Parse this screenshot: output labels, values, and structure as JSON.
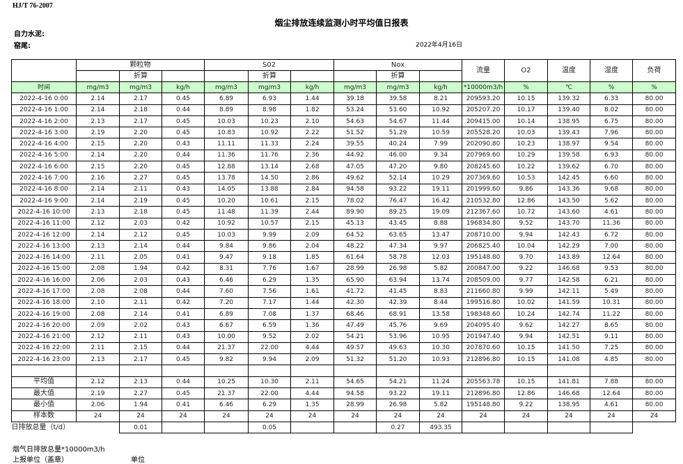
{
  "standard": "HJ/T  76-2007",
  "title": "烟尘排放连续监测小时平均值日报表",
  "company_label": "自力水泥:",
  "kiln_label": "窑尾:",
  "report_date": "2022年4月16日",
  "header": {
    "particulate": "颗粒物",
    "so2": "S02",
    "nox": "Nox",
    "converted": "折算",
    "flow": "流量",
    "o2": "O2",
    "temperature": "温度",
    "humidity": "湿度",
    "load": "负荷"
  },
  "units": [
    "时间",
    "mg/m3",
    "mg/m3",
    "kg/h",
    "mg/m3",
    "mg/m3",
    "kg/h",
    "mg/m3",
    "mg/m3",
    "kg/h",
    "*10000m3/h",
    "%",
    "℃",
    "%",
    "%"
  ],
  "rows": [
    [
      "2022-4-16 0:00",
      "2.14",
      "2.17",
      "0.45",
      "6.89",
      "6.93",
      "1.44",
      "39.18",
      "39.58",
      "8.21",
      "209593.20",
      "10.15",
      "139.32",
      "6.33",
      "80.00"
    ],
    [
      "2022-4-16 1:00",
      "2.14",
      "2.18",
      "0.44",
      "8.89",
      "8.98",
      "1.82",
      "53.24",
      "53.60",
      "10.92",
      "205207.20",
      "10.17",
      "139.40",
      "8.02",
      "80.00"
    ],
    [
      "2022-4-16 2:00",
      "2.13",
      "2.17",
      "0.45",
      "10.03",
      "10.23",
      "2.10",
      "54.63",
      "54.67",
      "11.44",
      "209415.00",
      "10.14",
      "138.95",
      "6.75",
      "80.00"
    ],
    [
      "2022-4-16 3:00",
      "2.19",
      "2.20",
      "0.45",
      "10.83",
      "10.92",
      "2.22",
      "51.52",
      "51.29",
      "10.59",
      "205528.20",
      "10.03",
      "139.43",
      "7.96",
      "80.00"
    ],
    [
      "2022-4-16 4:00",
      "2.15",
      "2.20",
      "0.43",
      "11.11",
      "11.33",
      "2.24",
      "39.55",
      "40.24",
      "7.99",
      "202090.80",
      "10.23",
      "138.97",
      "9.54",
      "80.00"
    ],
    [
      "2022-4-16 5:00",
      "2.14",
      "2.20",
      "0.44",
      "11.36",
      "11.76",
      "2.36",
      "44.92",
      "46.00",
      "9.34",
      "207969.60",
      "10.29",
      "139.58",
      "6.93",
      "80.00"
    ],
    [
      "2022-4-16 6:00",
      "2.15",
      "2.20",
      "0.45",
      "12.88",
      "13.14",
      "2.68",
      "47.05",
      "47.20",
      "9.80",
      "208245.60",
      "10.22",
      "139.62",
      "6.70",
      "80.00"
    ],
    [
      "2022-4-16 7:00",
      "2.16",
      "2.27",
      "0.45",
      "13.78",
      "14.50",
      "2.86",
      "49.62",
      "52.14",
      "10.29",
      "207369.60",
      "10.53",
      "142.45",
      "6.60",
      "80.00"
    ],
    [
      "2022-4-16 8:00",
      "2.14",
      "2.11",
      "0.43",
      "14.05",
      "13.88",
      "2.84",
      "94.58",
      "93.22",
      "19.11",
      "201999.60",
      "9.86",
      "143.36",
      "9.68",
      "80.00"
    ],
    [
      "2022-4-16 9:00",
      "2.14",
      "2.19",
      "0.45",
      "10.20",
      "10.61",
      "2.15",
      "78.02",
      "76.47",
      "16.42",
      "210532.80",
      "12.86",
      "143.50",
      "5.62",
      "80.00"
    ],
    [
      "2022-4-16 10:00",
      "2.13",
      "2.18",
      "0.45",
      "11.48",
      "11.39",
      "2.44",
      "89.90",
      "89.25",
      "19.09",
      "212367.60",
      "10.72",
      "143.60",
      "4.61",
      "80.00"
    ],
    [
      "2022-4-16 11:00",
      "2.12",
      "2.03",
      "0.42",
      "10.92",
      "10.57",
      "2.15",
      "45.13",
      "43.45",
      "8.88",
      "196834.80",
      "9.52",
      "143.70",
      "11.36",
      "80.00"
    ],
    [
      "2022-4-16 12:00",
      "2.14",
      "2.12",
      "0.45",
      "10.03",
      "9.99",
      "2.09",
      "64.52",
      "63.65",
      "13.47",
      "208710.00",
      "9.94",
      "142.43",
      "6.72",
      "80.00"
    ],
    [
      "2022-4-16 13:00",
      "2.13",
      "2.14",
      "0.44",
      "9.84",
      "9.86",
      "2.04",
      "48.22",
      "47.34",
      "9.97",
      "206825.40",
      "10.04",
      "142.29",
      "7.00",
      "80.00"
    ],
    [
      "2022-4-16 14:00",
      "2.11",
      "2.05",
      "0.41",
      "9.47",
      "9.18",
      "1.85",
      "61.64",
      "58.78",
      "12.03",
      "195148.80",
      "9.70",
      "143.89",
      "12.64",
      "80.00"
    ],
    [
      "2022-4-16 15:00",
      "2.08",
      "1.94",
      "0.42",
      "8.31",
      "7.76",
      "1.67",
      "28.99",
      "26.98",
      "5.82",
      "200847.00",
      "9.22",
      "146.68",
      "9.53",
      "80.00"
    ],
    [
      "2022-4-16 16:00",
      "2.06",
      "2.03",
      "0.43",
      "6.46",
      "6.29",
      "1.35",
      "65.90",
      "63.94",
      "13.74",
      "208509.00",
      "9.77",
      "142.58",
      "6.21",
      "80.00"
    ],
    [
      "2022-4-16 17:00",
      "2.08",
      "2.08",
      "0.44",
      "7.60",
      "7.56",
      "1.61",
      "41.72",
      "41.45",
      "8.83",
      "211660.80",
      "9.99",
      "142.11",
      "5.49",
      "80.00"
    ],
    [
      "2022-4-16 18:00",
      "2.10",
      "2.11",
      "0.42",
      "7.20",
      "7.17",
      "1.44",
      "42.30",
      "42.39",
      "8.44",
      "199516.80",
      "10.02",
      "141.59",
      "10.31",
      "80.00"
    ],
    [
      "2022-4-16 19:00",
      "2.08",
      "2.14",
      "0.41",
      "6.89",
      "7.08",
      "1.37",
      "68.46",
      "68.91",
      "13.58",
      "198348.60",
      "10.24",
      "142.74",
      "11.22",
      "80.00"
    ],
    [
      "2022-4-16 20:00",
      "2.09",
      "2.02",
      "0.43",
      "6.67",
      "6.59",
      "1.36",
      "47.49",
      "45.76",
      "9.69",
      "204095.40",
      "9.62",
      "142.27",
      "8.65",
      "80.00"
    ],
    [
      "2022-4-16 21:00",
      "2.12",
      "2.11",
      "0.43",
      "10.00",
      "9.52",
      "2.02",
      "54.21",
      "53.96",
      "10.95",
      "201947.40",
      "9.94",
      "142.51",
      "9.11",
      "80.00"
    ],
    [
      "2022-4-16 22:00",
      "2.11",
      "2.15",
      "0.44",
      "21.37",
      "22.00",
      "4.44",
      "49.57",
      "49.63",
      "10.30",
      "207870.60",
      "10.15",
      "141.50",
      "7.25",
      "80.00"
    ],
    [
      "2022-4-16 23:00",
      "2.13",
      "2.17",
      "0.45",
      "9.82",
      "9.94",
      "2.09",
      "51.32",
      "51.20",
      "10.93",
      "212896.80",
      "10.15",
      "141.08",
      "4.85",
      "80.00"
    ]
  ],
  "summary": [
    [
      "平均值",
      "2.12",
      "2.13",
      "0.44",
      "10.25",
      "10.30",
      "2.11",
      "54.65",
      "54.21",
      "11.24",
      "205563.78",
      "10.15",
      "141.81",
      "7.88",
      "80.00"
    ],
    [
      "最大值",
      "2.19",
      "2.27",
      "0.45",
      "21.37",
      "22.00",
      "4.44",
      "94.58",
      "93.22",
      "19.11",
      "212896.80",
      "12.86",
      "146.68",
      "12.64",
      "80.00"
    ],
    [
      "最小值",
      "2.06",
      "1.94",
      "0.41",
      "6.46",
      "6.29",
      "1.35",
      "28.99",
      "26.98",
      "5.82",
      "195148.80",
      "9.22",
      "138.95",
      "4.61",
      "80.00"
    ],
    [
      "样本数",
      "24",
      "24",
      "24",
      "24",
      "24",
      "24",
      "24",
      "24",
      "24",
      "24",
      "24",
      "24",
      "24",
      "24"
    ]
  ],
  "daily_total": {
    "label": "日排放总量（t/d）",
    "particulate_kgh": "0.01",
    "so2_kgh": "0.05",
    "nox_kgh": "0.27",
    "flow": "493.35"
  },
  "footer": {
    "flue_gas_total": "烟气日排放总量*10000m3/h",
    "reporting_unit": "上报单位（盖章）",
    "unit": "单位"
  },
  "colors": {
    "unit_row_bg": "#ccffcc"
  }
}
